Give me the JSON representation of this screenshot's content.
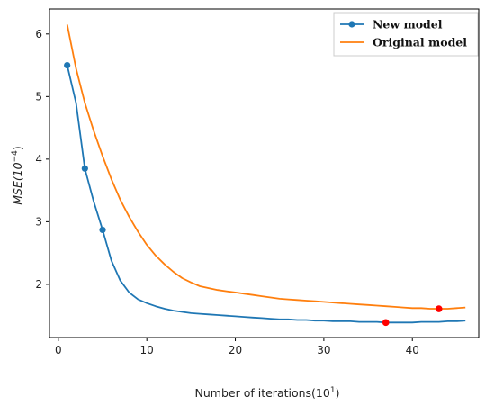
{
  "chart_data": {
    "type": "line",
    "xlabel_main": "Number of iterations(10",
    "xlabel_exp": "1",
    "xlabel_close": ")",
    "ylabel_main": "MSE(10",
    "ylabel_exp": "−4",
    "ylabel_close": ")",
    "xlim": [
      -1,
      47.5
    ],
    "ylim": [
      1.15,
      6.4
    ],
    "xticks": [
      0,
      10,
      20,
      30,
      40
    ],
    "yticks": [
      2,
      3,
      4,
      5,
      6
    ],
    "grid": false,
    "legend_position": "top-right",
    "series": [
      {
        "name": "New model",
        "color": "#1f77b4",
        "marker": "circle",
        "marker_x": [
          1,
          3,
          5
        ],
        "x": [
          1,
          2,
          3,
          4,
          5,
          6,
          7,
          8,
          9,
          10,
          11,
          12,
          13,
          14,
          15,
          16,
          17,
          18,
          19,
          20,
          21,
          22,
          23,
          24,
          25,
          26,
          27,
          28,
          29,
          30,
          31,
          32,
          33,
          34,
          35,
          36,
          37,
          38,
          39,
          40,
          41,
          42,
          43,
          44,
          45,
          46
        ],
        "y": [
          5.5,
          4.9,
          3.85,
          3.32,
          2.87,
          2.38,
          2.06,
          1.87,
          1.76,
          1.7,
          1.65,
          1.61,
          1.58,
          1.56,
          1.54,
          1.53,
          1.52,
          1.51,
          1.5,
          1.49,
          1.48,
          1.47,
          1.46,
          1.45,
          1.44,
          1.44,
          1.43,
          1.43,
          1.42,
          1.42,
          1.41,
          1.41,
          1.41,
          1.4,
          1.4,
          1.4,
          1.39,
          1.39,
          1.39,
          1.39,
          1.4,
          1.4,
          1.4,
          1.41,
          1.41,
          1.42
        ]
      },
      {
        "name": "Original model",
        "color": "#ff7f0e",
        "marker": "none",
        "marker_x": [],
        "x": [
          1,
          2,
          3,
          4,
          5,
          6,
          7,
          8,
          9,
          10,
          11,
          12,
          13,
          14,
          15,
          16,
          17,
          18,
          19,
          20,
          21,
          22,
          23,
          24,
          25,
          26,
          27,
          28,
          29,
          30,
          31,
          32,
          33,
          34,
          35,
          36,
          37,
          38,
          39,
          40,
          41,
          42,
          43,
          44,
          45,
          46
        ],
        "y": [
          6.15,
          5.45,
          4.9,
          4.45,
          4.05,
          3.68,
          3.35,
          3.08,
          2.84,
          2.63,
          2.46,
          2.32,
          2.2,
          2.1,
          2.03,
          1.97,
          1.94,
          1.91,
          1.89,
          1.87,
          1.85,
          1.83,
          1.81,
          1.79,
          1.77,
          1.76,
          1.75,
          1.74,
          1.73,
          1.72,
          1.71,
          1.7,
          1.69,
          1.68,
          1.67,
          1.66,
          1.65,
          1.64,
          1.63,
          1.62,
          1.62,
          1.61,
          1.61,
          1.61,
          1.62,
          1.63
        ]
      }
    ],
    "highlight_points": [
      {
        "x": 37,
        "y": 1.39,
        "color": "#ff0000"
      },
      {
        "x": 43,
        "y": 1.61,
        "color": "#ff0000"
      }
    ]
  }
}
